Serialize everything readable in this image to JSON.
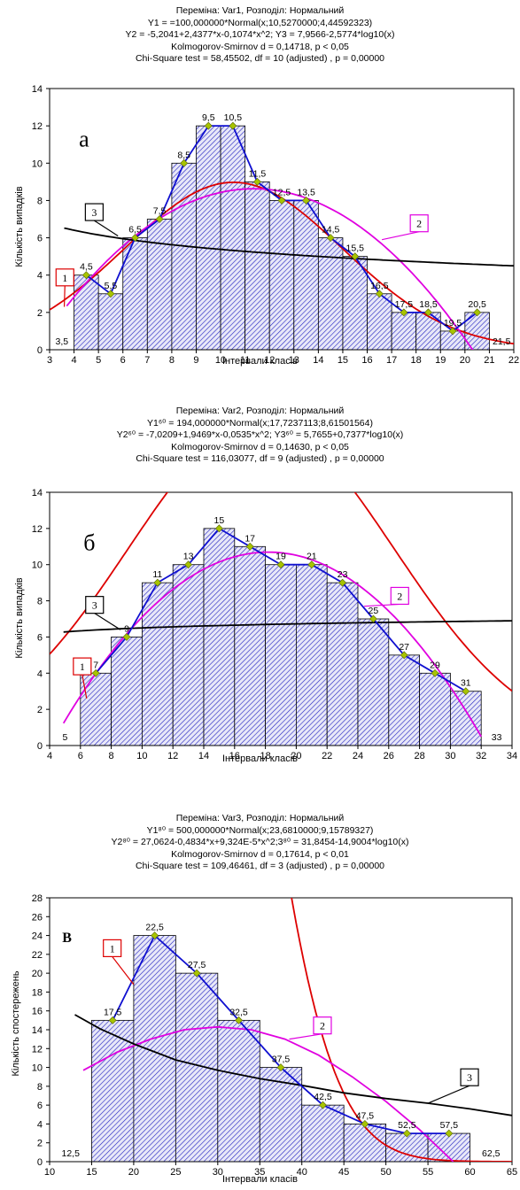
{
  "chart_data": [
    {
      "type": "bar",
      "title_lines": [
        "Переміна: Var1, Розподіл: Нормальний",
        "Y1 = =100,000000*Normal(x;10,5270000;4,44592323)",
        "Y2 = -5,2041+2,4377*x-0,1074*x^2; Y3 = 7,9566-2,5774*log10(x)",
        "Kolmogorov-Smirnov d = 0,14718, p < 0,05",
        "Chi-Square test = 58,45502, df = 10 (adjusted) , p = 0,00000"
      ],
      "panel_letter": "а",
      "xlabel": "Інтервали класів",
      "ylabel": "Кількість випадків",
      "xlim": [
        3,
        22
      ],
      "ylim": [
        0,
        14
      ],
      "xticks": [
        3,
        4,
        5,
        6,
        7,
        8,
        9,
        10,
        11,
        12,
        13,
        14,
        15,
        16,
        17,
        18,
        19,
        20,
        21,
        22
      ],
      "yticks": [
        0,
        2,
        4,
        6,
        8,
        10,
        12,
        14
      ],
      "bar_width": 1,
      "bars": [
        [
          4.5,
          4
        ],
        [
          5.5,
          3
        ],
        [
          6.5,
          6
        ],
        [
          7.5,
          7
        ],
        [
          8.5,
          10
        ],
        [
          9.5,
          12
        ],
        [
          10.5,
          12
        ],
        [
          11.5,
          9
        ],
        [
          12.5,
          8
        ],
        [
          13.5,
          8
        ],
        [
          14.5,
          6
        ],
        [
          15.5,
          5
        ],
        [
          16.5,
          3
        ],
        [
          17.5,
          2
        ],
        [
          18.5,
          2
        ],
        [
          19.5,
          1
        ],
        [
          20.5,
          2
        ]
      ],
      "point_labels": [
        "3,5",
        "4,5",
        "5,5",
        "6,5",
        "7,5",
        "8,5",
        "9,5",
        "10,5",
        "11,5",
        "12,5",
        "13,5",
        "14,5",
        "15,5",
        "16,5",
        "17,5",
        "18,5",
        "19,5",
        "20,5",
        "21,5"
      ],
      "label_positions": [
        [
          3.5,
          0
        ],
        [
          4.5,
          4
        ],
        [
          5.5,
          3
        ],
        [
          6.5,
          6
        ],
        [
          7.5,
          7
        ],
        [
          8.5,
          10
        ],
        [
          9.5,
          12
        ],
        [
          10.5,
          12
        ],
        [
          11.5,
          9
        ],
        [
          12.5,
          8
        ],
        [
          13.5,
          8
        ],
        [
          14.5,
          6
        ],
        [
          15.5,
          5
        ],
        [
          16.5,
          3
        ],
        [
          17.5,
          2
        ],
        [
          18.5,
          2
        ],
        [
          19.5,
          1
        ],
        [
          20.5,
          2
        ],
        [
          21.5,
          0
        ]
      ],
      "curves": [
        {
          "label": "1",
          "color": "#dd0000",
          "kind": "normal",
          "n": 100,
          "mean": 10.527,
          "sd": 4.44592323,
          "binw": 1,
          "x": [
            3,
            22
          ],
          "callout_text": [
            3.3,
            3.9
          ],
          "callout_to": [
            3.6,
            2.3
          ]
        },
        {
          "label": "2",
          "color": "#e000e0",
          "kind": "poly",
          "c": [
            -5.2041,
            2.4377,
            -0.1074
          ],
          "x": [
            3.7,
            20.5
          ],
          "callout_text": [
            17.8,
            6.8
          ],
          "callout_to": [
            16.6,
            5.9
          ]
        },
        {
          "label": "3",
          "color": "#000000",
          "kind": "log",
          "a": 7.9566,
          "b": -2.5774,
          "x": [
            3.6,
            22
          ],
          "callout_text": [
            4.5,
            7.4
          ],
          "callout_to": [
            5.8,
            6.1
          ]
        }
      ]
    },
    {
      "type": "bar",
      "title_lines": [
        "Переміна: Var2, Розподіл: Нормальний",
        "Y1⁶⁰ = 194,000000*Normal(x;17,7237113;8,61501564)",
        "Y2⁶⁰ = -7,0209+1,9469*x-0,0535*x^2; Y3⁶⁰ = 5,7655+0,7377*log10(x)",
        "Kolmogorov-Smirnov d = 0,14630, p < 0,05",
        "Chi-Square test = 116,03077, df = 9 (adjusted) , p = 0,00000"
      ],
      "panel_letter": "б",
      "xlabel": "Інтервали класів",
      "ylabel": "Кількість випадків",
      "xlim": [
        4,
        34
      ],
      "ylim": [
        0,
        14
      ],
      "xticks": [
        4,
        6,
        8,
        10,
        12,
        14,
        16,
        18,
        20,
        22,
        24,
        26,
        28,
        30,
        32,
        34
      ],
      "yticks": [
        0,
        2,
        4,
        6,
        8,
        10,
        12,
        14
      ],
      "bar_width": 2,
      "bars": [
        [
          7,
          4
        ],
        [
          9,
          6
        ],
        [
          11,
          9
        ],
        [
          13,
          10
        ],
        [
          15,
          12
        ],
        [
          17,
          11
        ],
        [
          19,
          10
        ],
        [
          21,
          10
        ],
        [
          23,
          9
        ],
        [
          25,
          7
        ],
        [
          27,
          5
        ],
        [
          29,
          4
        ],
        [
          31,
          3
        ]
      ],
      "point_labels": [
        "5",
        "7",
        "9",
        "11",
        "13",
        "15",
        "17",
        "19",
        "21",
        "23",
        "25",
        "27",
        "29",
        "31",
        "33"
      ],
      "label_positions": [
        [
          5,
          0
        ],
        [
          7,
          4
        ],
        [
          9,
          6
        ],
        [
          11,
          9
        ],
        [
          13,
          10
        ],
        [
          15,
          12
        ],
        [
          17,
          11
        ],
        [
          19,
          10
        ],
        [
          21,
          10
        ],
        [
          23,
          9
        ],
        [
          25,
          7
        ],
        [
          27,
          5
        ],
        [
          29,
          4
        ],
        [
          31,
          3
        ],
        [
          33,
          0
        ]
      ],
      "curves": [
        {
          "label": "1",
          "color": "#dd0000",
          "kind": "normal",
          "n": 194,
          "mean": 17.7237113,
          "sd": 8.61501564,
          "binw": 2,
          "x": [
            4,
            34
          ],
          "callout_text": [
            5.6,
            4.4
          ],
          "callout_to": [
            6.4,
            2.6
          ]
        },
        {
          "label": "2",
          "color": "#e000e0",
          "kind": "poly",
          "c": [
            -7.0209,
            1.9469,
            -0.0535
          ],
          "x": [
            4.9,
            32
          ],
          "callout_text": [
            26.2,
            8.3
          ],
          "callout_to": [
            24.4,
            7.7
          ]
        },
        {
          "label": "3",
          "color": "#000000",
          "kind": "log",
          "a": 5.7655,
          "b": 0.7377,
          "x": [
            4.9,
            34
          ],
          "callout_text": [
            6.4,
            7.8
          ],
          "callout_to": [
            8.6,
            6.4
          ]
        }
      ]
    },
    {
      "type": "bar",
      "title_lines": [
        "Переміна: Var3, Розподіл: Нормальний",
        "Y1⁸⁰ = 500,000000*Normal(x;23,6810000;9,15789327)",
        "Y2⁸⁰ = 27,0624-0,4834*x+9,324E-5*x^2;3⁸⁰ = 31,8454-14,9004*log10(x)",
        "Kolmogorov-Smirnov d = 0,17614, p < 0,01",
        "Chi-Square test = 109,46461, df = 3 (adjusted) , p = 0,00000"
      ],
      "panel_letter": "в",
      "xlabel": "Інтервали класів",
      "ylabel": "Кількість спостережень",
      "xlim": [
        10,
        65
      ],
      "ylim": [
        0,
        28
      ],
      "xticks": [
        10,
        15,
        20,
        25,
        30,
        35,
        40,
        45,
        50,
        55,
        60,
        65
      ],
      "yticks": [
        0,
        2,
        4,
        6,
        8,
        10,
        12,
        14,
        16,
        18,
        20,
        22,
        24,
        26,
        28
      ],
      "bar_width": 5,
      "bars": [
        [
          17.5,
          15
        ],
        [
          22.5,
          24
        ],
        [
          27.5,
          20
        ],
        [
          32.5,
          15
        ],
        [
          37.5,
          10
        ],
        [
          42.5,
          6
        ],
        [
          47.5,
          4
        ],
        [
          52.5,
          3
        ],
        [
          57.5,
          3
        ]
      ],
      "point_labels": [
        "12,5",
        "17,5",
        "22,5",
        "27,5",
        "32,5",
        "37,5",
        "42,5",
        "47,5",
        "52,5",
        "57,5",
        "62,5"
      ],
      "label_positions": [
        [
          12.5,
          0
        ],
        [
          17.5,
          15
        ],
        [
          22.5,
          24
        ],
        [
          27.5,
          20
        ],
        [
          32.5,
          15
        ],
        [
          37.5,
          10
        ],
        [
          42.5,
          6
        ],
        [
          47.5,
          4
        ],
        [
          52.5,
          3
        ],
        [
          57.5,
          3
        ],
        [
          62.5,
          0
        ]
      ],
      "curves": [
        {
          "label": "1",
          "color": "#dd0000",
          "kind": "normal",
          "n": 500,
          "mean": 23.681,
          "sd": 9.15789327,
          "binw": 5,
          "x": [
            10,
            65
          ],
          "callout_text": [
            16.5,
            22.7
          ],
          "callout_to": [
            20.0,
            18.8
          ]
        },
        {
          "label": "2",
          "color": "#e000e0",
          "kind": "custom",
          "x": [
            14,
            58
          ],
          "pts": [
            [
              14,
              9.7
            ],
            [
              18,
              11.6
            ],
            [
              22,
              13.0
            ],
            [
              26,
              14.0
            ],
            [
              30,
              14.3
            ],
            [
              34,
              14.0
            ],
            [
              38,
              13.0
            ],
            [
              42,
              11.3
            ],
            [
              46,
              9.0
            ],
            [
              50,
              6.4
            ],
            [
              54,
              3.4
            ],
            [
              56,
              1.7
            ],
            [
              58,
              0
            ]
          ],
          "callout_text": [
            41.5,
            14.5
          ],
          "callout_to": [
            38.5,
            13.0
          ]
        },
        {
          "label": "3",
          "color": "#000000",
          "kind": "custom",
          "x": [
            13,
            65
          ],
          "pts": [
            [
              13,
              15.6
            ],
            [
              16,
              14.1
            ],
            [
              20,
              12.5
            ],
            [
              25,
              10.8
            ],
            [
              30,
              9.7
            ],
            [
              35,
              8.8
            ],
            [
              40,
              8.1
            ],
            [
              45,
              7.3
            ],
            [
              50,
              6.7
            ],
            [
              55,
              6.2
            ],
            [
              60,
              5.6
            ],
            [
              65,
              4.9
            ]
          ],
          "callout_text": [
            59,
            9.0
          ],
          "callout_to": [
            55,
            6.2
          ]
        }
      ]
    }
  ]
}
